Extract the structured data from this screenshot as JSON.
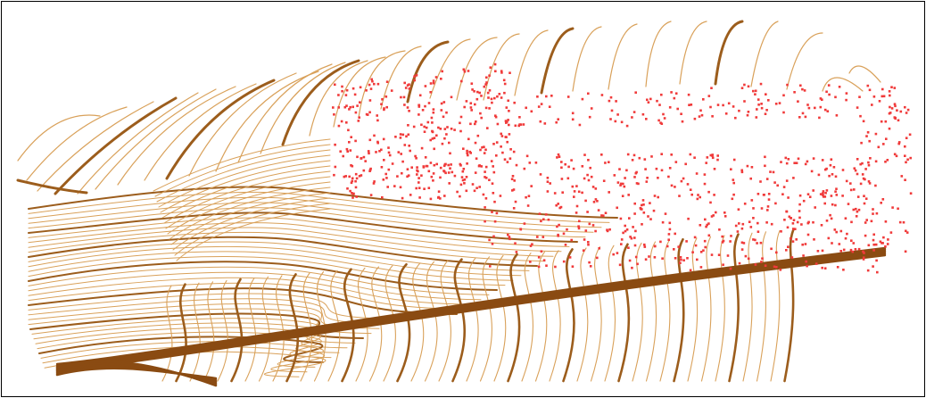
{
  "colors": {
    "contour_light": "#d9a15a",
    "contour_index": "#9c5d1c",
    "contour_dark": "#8a4b12",
    "points": "#f03a3a",
    "background": "#ffffff",
    "border": "#000000"
  }
}
